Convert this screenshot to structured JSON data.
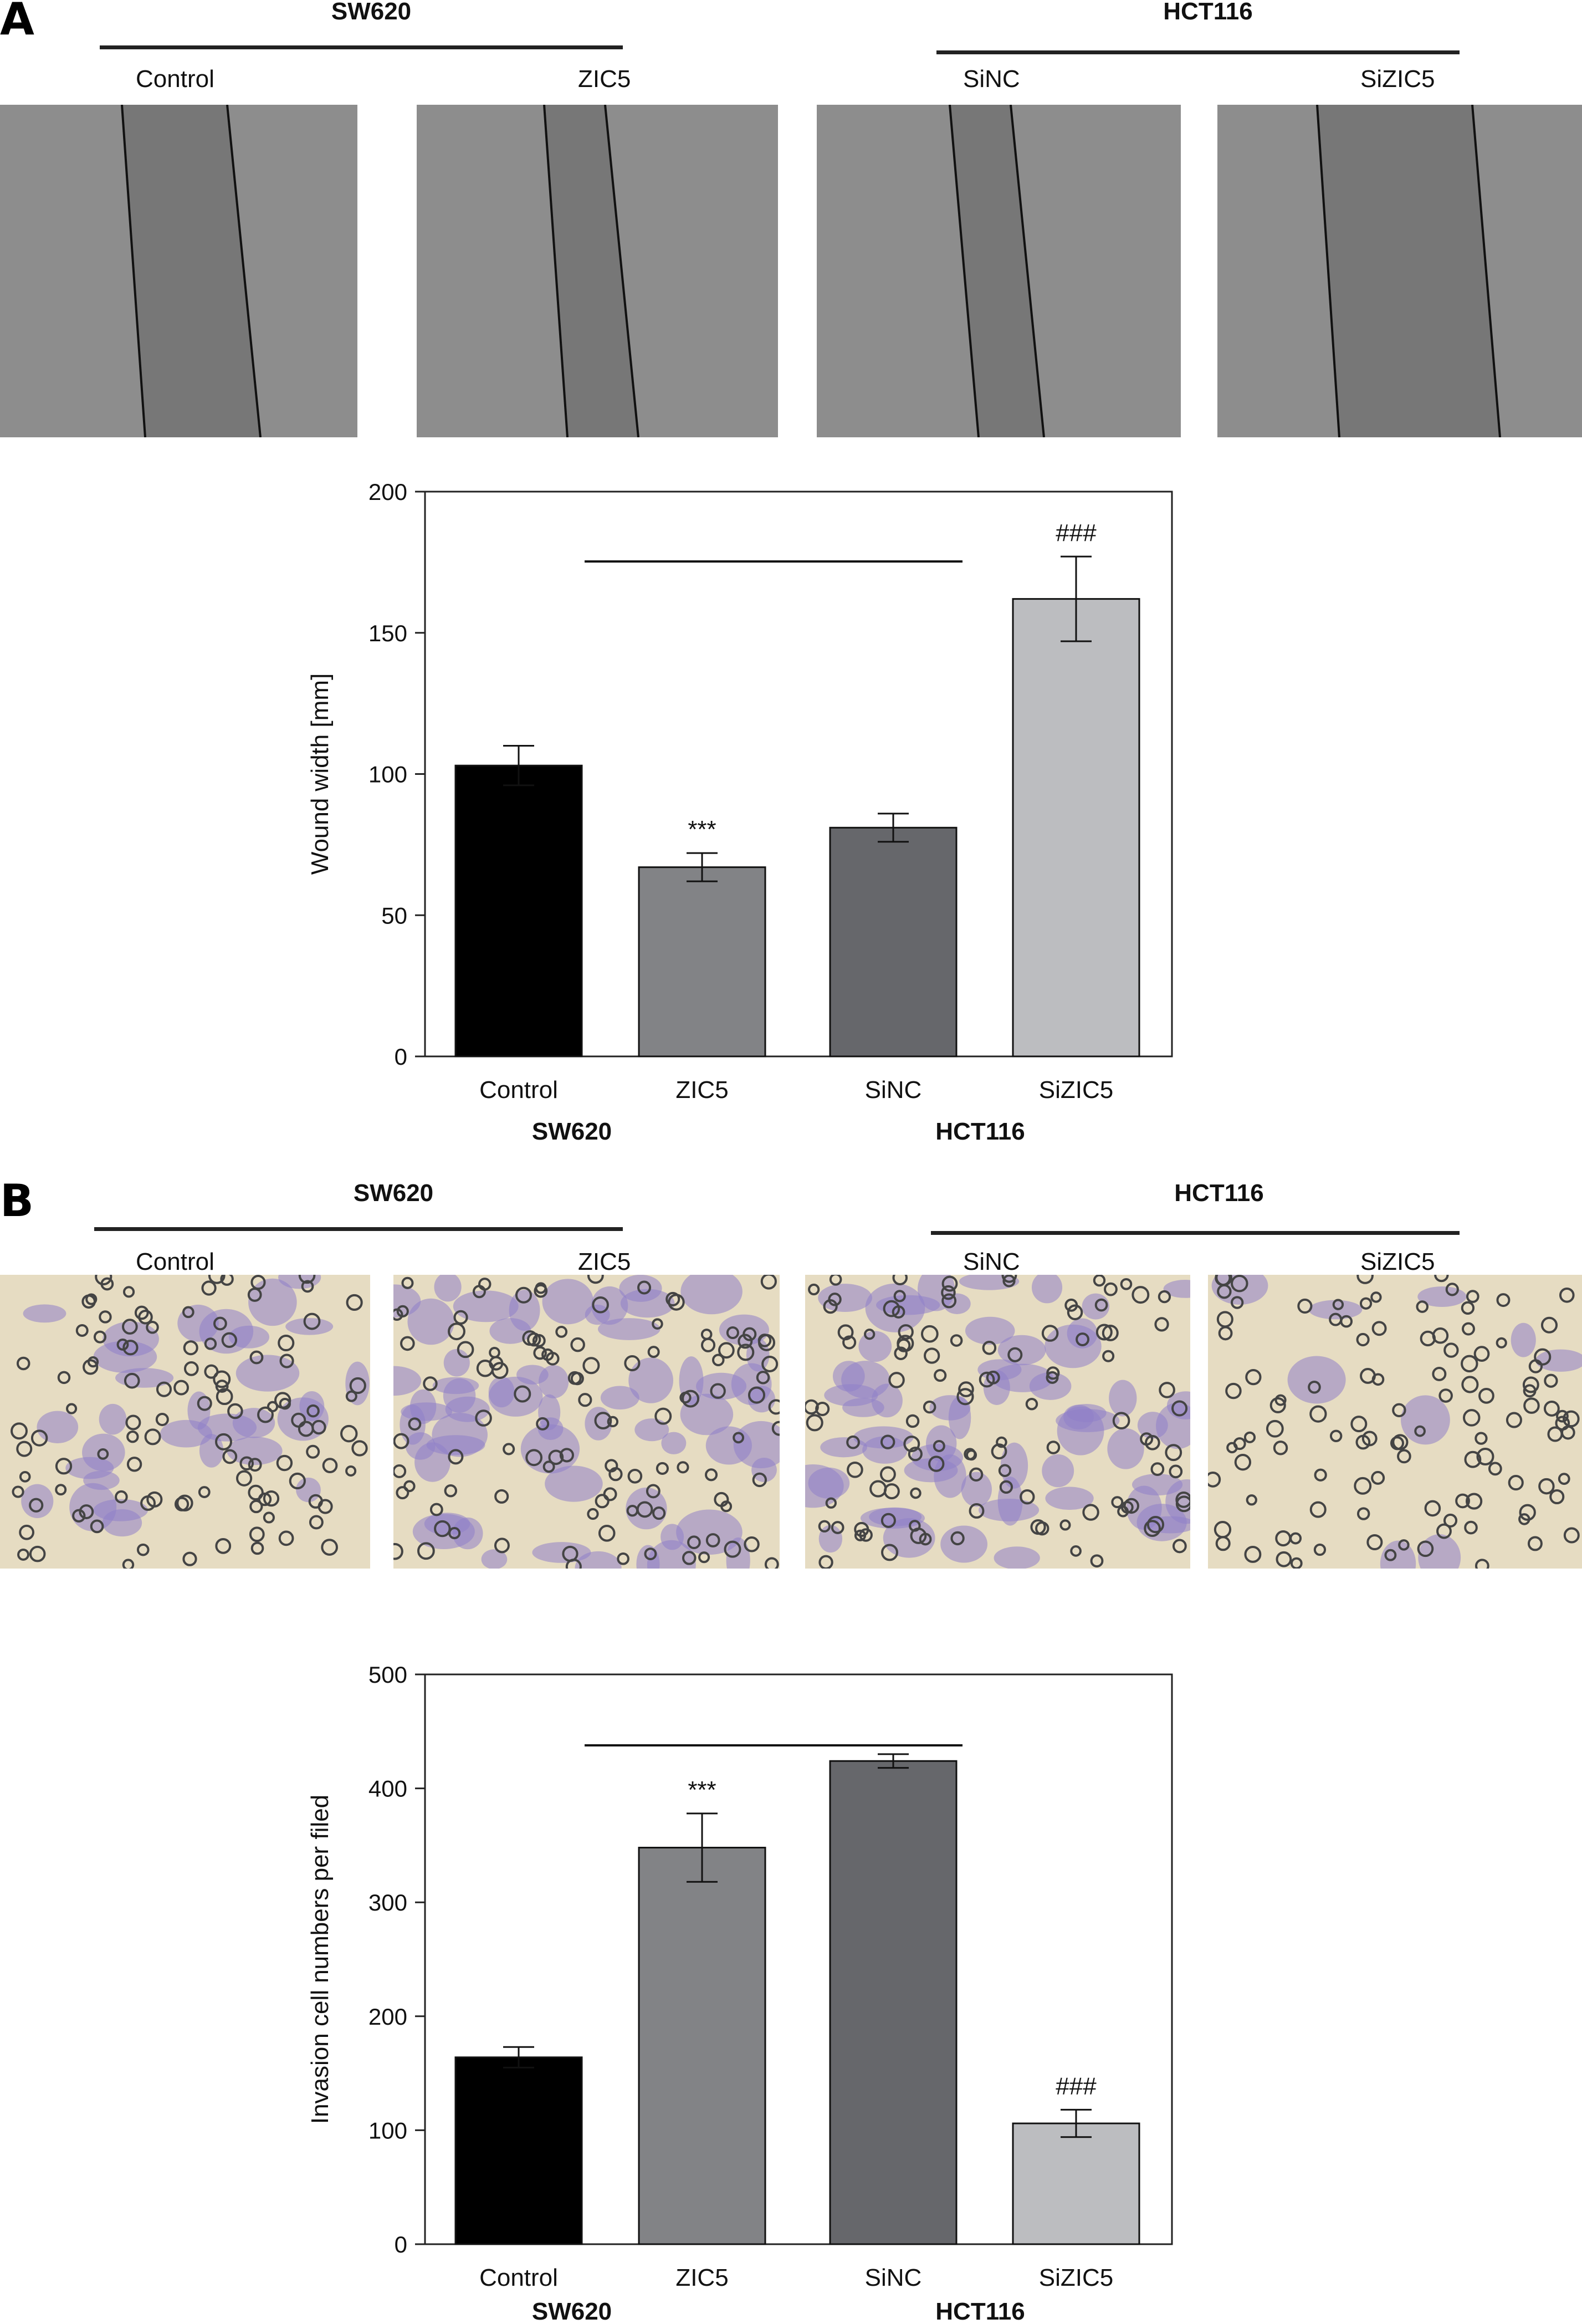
{
  "panel_A": {
    "letter": "A",
    "groups": [
      {
        "label": "SW620"
      },
      {
        "label": "HCT116"
      }
    ],
    "image_labels": [
      "Control",
      "ZIC5",
      "SiNC",
      "SiZIC5"
    ]
  },
  "panel_B": {
    "letter": "B",
    "groups": [
      {
        "label": "SW620"
      },
      {
        "label": "HCT116"
      }
    ],
    "image_labels": [
      "Control",
      "ZIC5",
      "SiNC",
      "SiZIC5"
    ]
  },
  "colors": {
    "Control": "#000000",
    "ZIC5": "#828386",
    "SiNC": "#66676b",
    "SiZIC5": "#bcbdc0"
  },
  "chart_data": [
    {
      "type": "bar",
      "ylabel": "Wound width [mm]",
      "ylim": [
        0,
        200
      ],
      "yticks": [
        0,
        50,
        100,
        150,
        200
      ],
      "categories": [
        "Control",
        "ZIC5",
        "SiNC",
        "SiZIC5"
      ],
      "groups": [
        {
          "label": "SW620",
          "categories": [
            "Control",
            "ZIC5"
          ]
        },
        {
          "label": "HCT116",
          "categories": [
            "SiNC",
            "SiZIC5"
          ]
        }
      ],
      "values": [
        103,
        67,
        81,
        162
      ],
      "errors": [
        7,
        5,
        5,
        15
      ],
      "annotations": [
        "",
        "***",
        "",
        "###"
      ],
      "comparison_bar": true
    },
    {
      "type": "bar",
      "ylabel": "Invasion cell numbers per filed",
      "ylim": [
        0,
        500
      ],
      "yticks": [
        0,
        100,
        200,
        300,
        400,
        500
      ],
      "categories": [
        "Control",
        "ZIC5",
        "SiNC",
        "SiZIC5"
      ],
      "groups": [
        {
          "label": "SW620",
          "categories": [
            "Control",
            "ZIC5"
          ]
        },
        {
          "label": "HCT116",
          "categories": [
            "SiNC",
            "SiZIC5"
          ]
        }
      ],
      "values": [
        164,
        348,
        424,
        106
      ],
      "errors": [
        9,
        30,
        6,
        12
      ],
      "annotations": [
        "",
        "***",
        "",
        "###"
      ],
      "comparison_bar": true
    }
  ]
}
